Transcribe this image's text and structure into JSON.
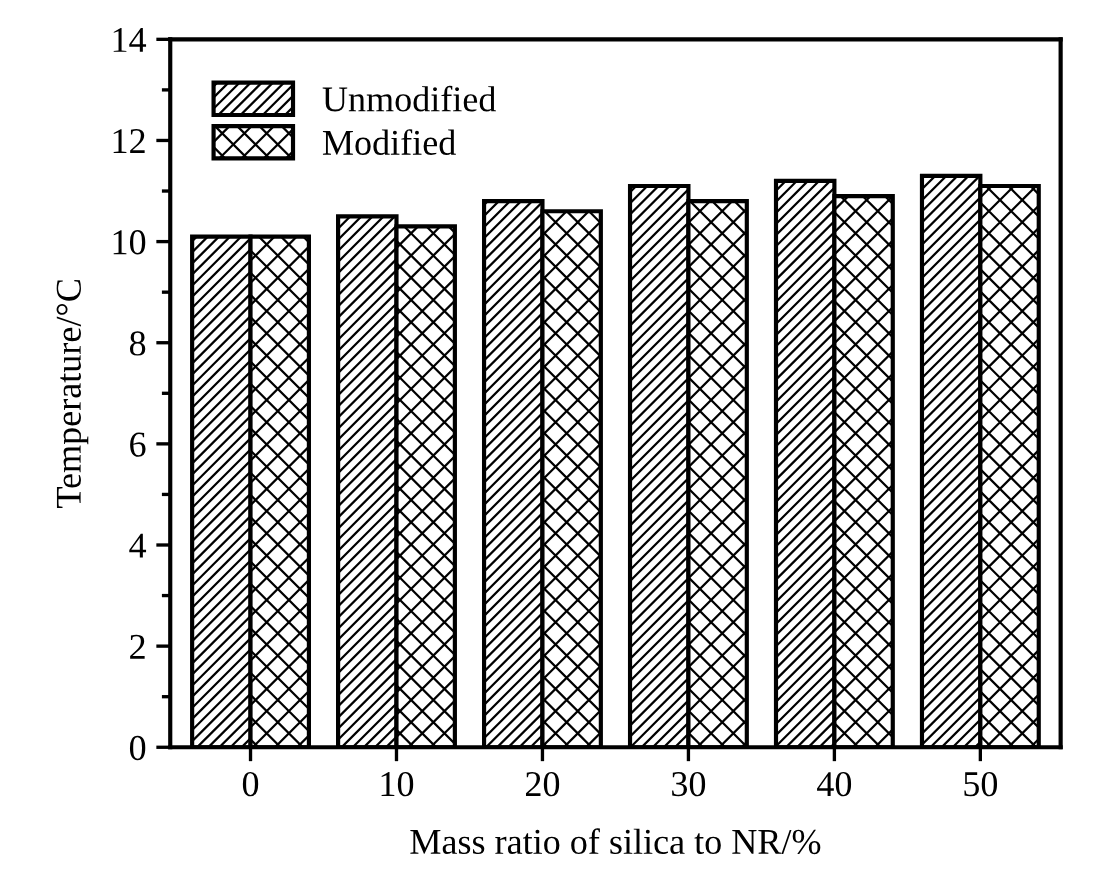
{
  "chart_data": {
    "type": "bar",
    "xlabel": "Mass ratio of silica to NR/%",
    "ylabel": "Temperature/°C",
    "categories": [
      "0",
      "10",
      "20",
      "30",
      "40",
      "50"
    ],
    "series": [
      {
        "name": "Unmodified",
        "color": "#000000",
        "values": [
          10.1,
          10.5,
          10.8,
          11.1,
          11.2,
          11.3
        ]
      },
      {
        "name": "Modified",
        "color": "#000000",
        "values": [
          10.1,
          10.3,
          10.6,
          10.8,
          10.9,
          11.1
        ]
      }
    ],
    "ylim": [
      0,
      14
    ],
    "yticks": [
      0,
      2,
      4,
      6,
      8,
      10,
      12,
      14
    ],
    "grid": false,
    "legend": "top left"
  }
}
